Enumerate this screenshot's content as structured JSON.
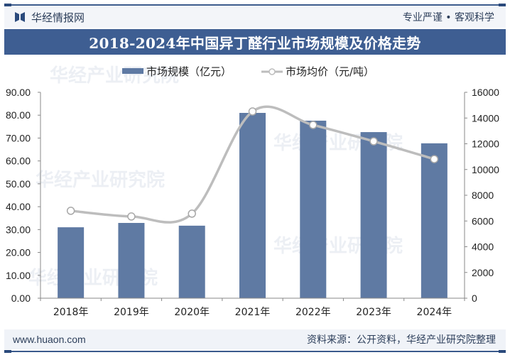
{
  "header": {
    "brand_name": "华经情报网",
    "slogan": "专业严谨 • 客观科学",
    "title": "2018-2024年中国异丁醛行业市场规模及价格走势"
  },
  "footer": {
    "url": "www.huaon.com",
    "source": "资料来源：公开资料，华经产业研究院整理"
  },
  "watermarks": [
    "华经产业研究院",
    "华经产业研究院",
    "华经产业研究院",
    "华经产业研究院",
    "华经产业研究院"
  ],
  "colors": {
    "bar": "#5f7aa3",
    "line": "#bdbdbd",
    "title_band": "#3e5e92",
    "axis": "#888888"
  },
  "chart_data": {
    "type": "bar+line",
    "title": "2018-2024年中国异丁醛行业市场规模及价格走势",
    "categories": [
      "2018年",
      "2019年",
      "2020年",
      "2021年",
      "2022年",
      "2023年",
      "2024年"
    ],
    "series": [
      {
        "name": "市场规模（亿元）",
        "type": "bar",
        "axis": "left",
        "values": [
          31.0,
          32.9,
          31.7,
          81.0,
          77.6,
          72.6,
          67.7
        ]
      },
      {
        "name": "市场均价（元/吨）",
        "type": "line",
        "axis": "right",
        "smooth": true,
        "values": [
          6790,
          6350,
          6570,
          14510,
          13460,
          12190,
          10810
        ]
      }
    ],
    "left_axis": {
      "ylim": [
        0,
        90
      ],
      "ticks": [
        "0.00",
        "10.00",
        "20.00",
        "30.00",
        "40.00",
        "50.00",
        "60.00",
        "70.00",
        "80.00",
        "90.00"
      ]
    },
    "right_axis": {
      "ylim": [
        0,
        16000
      ],
      "ticks": [
        "0",
        "2000",
        "4000",
        "6000",
        "8000",
        "10000",
        "12000",
        "14000",
        "16000"
      ]
    },
    "legend": {
      "position": "top-center"
    },
    "grid": false,
    "xlabel": "",
    "ylabel": ""
  }
}
